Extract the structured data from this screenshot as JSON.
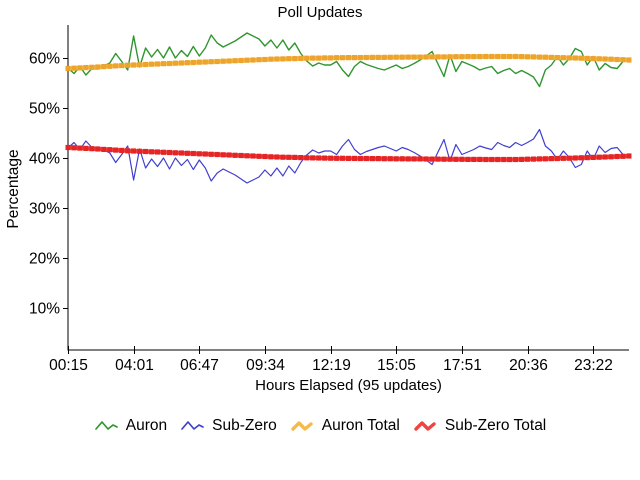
{
  "chart_data": {
    "type": "line",
    "title": "Poll Updates",
    "xlabel": "Hours Elapsed (95 updates)",
    "ylabel": "Percentage",
    "x_tick_labels": [
      "00:15",
      "04:01",
      "06:47",
      "09:34",
      "12:19",
      "15:05",
      "17:51",
      "20:36",
      "23:22"
    ],
    "x_points": 95,
    "x_ticks_every_points": 11,
    "y_ticks": [
      10,
      20,
      30,
      40,
      50,
      60
    ],
    "y_tick_labels": [
      "10%",
      "20%",
      "30%",
      "40%",
      "50%",
      "60%"
    ],
    "ylim": [
      1.6,
      66.6
    ],
    "grid": false,
    "legend_position": "bottom",
    "background": "#ffffff",
    "axis_color": "#000000",
    "series": [
      {
        "name": "Auron",
        "color": "#2f962f",
        "line_width": 1.4,
        "values": [
          58.0,
          56.9,
          58.3,
          56.6,
          57.9,
          57.8,
          58.4,
          59.0,
          60.9,
          59.3,
          57.6,
          64.4,
          58.2,
          62.0,
          60.2,
          61.7,
          60.0,
          62.2,
          60.0,
          61.5,
          60.3,
          62.3,
          60.4,
          62.0,
          64.6,
          63.0,
          62.2,
          62.8,
          63.4,
          64.2,
          65.0,
          64.4,
          63.8,
          62.4,
          63.6,
          62.0,
          63.6,
          61.6,
          63.0,
          60.9,
          59.4,
          58.4,
          59.0,
          58.6,
          58.6,
          59.3,
          57.6,
          56.3,
          58.3,
          59.3,
          58.7,
          58.3,
          57.9,
          57.6,
          58.1,
          58.6,
          57.9,
          58.3,
          58.9,
          59.6,
          60.4,
          61.3,
          58.8,
          56.3,
          60.6,
          57.3,
          59.3,
          58.8,
          58.3,
          57.6,
          58.0,
          58.3,
          56.9,
          57.5,
          57.9,
          56.9,
          57.5,
          56.9,
          56.2,
          54.3,
          57.6,
          58.6,
          60.3,
          58.6,
          59.9,
          61.9,
          61.3,
          58.6,
          60.3,
          57.6,
          58.9,
          58.1,
          57.9,
          59.3,
          59.6
        ]
      },
      {
        "name": "Sub-Zero",
        "color": "#4040d0",
        "line_width": 1.2,
        "values": [
          42.0,
          43.1,
          41.7,
          43.4,
          42.1,
          42.2,
          41.6,
          41.0,
          39.1,
          40.7,
          42.4,
          35.6,
          41.8,
          38.0,
          39.8,
          38.3,
          40.0,
          37.8,
          40.0,
          38.5,
          39.7,
          37.7,
          39.6,
          38.0,
          35.4,
          37.0,
          37.8,
          37.2,
          36.6,
          35.8,
          35.0,
          35.6,
          36.2,
          37.6,
          36.4,
          38.0,
          36.4,
          38.4,
          37.0,
          39.1,
          40.6,
          41.6,
          41.0,
          41.4,
          41.4,
          40.7,
          42.4,
          43.7,
          41.7,
          40.7,
          41.3,
          41.7,
          42.1,
          42.4,
          41.9,
          41.4,
          42.1,
          41.7,
          41.1,
          40.4,
          39.6,
          38.7,
          41.2,
          43.7,
          39.4,
          42.7,
          40.7,
          41.2,
          41.7,
          42.4,
          42.0,
          41.7,
          43.1,
          42.5,
          42.1,
          43.1,
          42.5,
          43.1,
          43.8,
          45.7,
          42.4,
          41.4,
          39.7,
          41.4,
          40.1,
          38.1,
          38.7,
          41.4,
          39.7,
          42.4,
          41.1,
          41.9,
          42.1,
          40.7,
          40.4
        ]
      },
      {
        "name": "Auron Total",
        "color": "#f5bb4a",
        "marker_color": "#eda42c",
        "line_width": 4.2,
        "values": [
          57.9,
          57.96,
          58.02,
          58.08,
          58.14,
          58.2,
          58.27,
          58.34,
          58.41,
          58.48,
          58.55,
          58.6,
          58.65,
          58.7,
          58.75,
          58.8,
          58.85,
          58.9,
          58.95,
          59.0,
          59.05,
          59.1,
          59.15,
          59.2,
          59.25,
          59.3,
          59.35,
          59.4,
          59.45,
          59.5,
          59.55,
          59.6,
          59.65,
          59.7,
          59.75,
          59.8,
          59.83,
          59.86,
          59.89,
          59.92,
          59.95,
          59.97,
          59.99,
          60.01,
          60.03,
          60.05,
          60.06,
          60.07,
          60.08,
          60.09,
          60.1,
          60.11,
          60.12,
          60.13,
          60.14,
          60.15,
          60.16,
          60.17,
          60.18,
          60.19,
          60.2,
          60.21,
          60.22,
          60.23,
          60.24,
          60.25,
          60.26,
          60.27,
          60.28,
          60.29,
          60.3,
          60.3,
          60.3,
          60.3,
          60.3,
          60.3,
          60.27,
          60.24,
          60.21,
          60.18,
          60.15,
          60.12,
          60.09,
          60.06,
          60.03,
          60.0,
          59.96,
          59.92,
          59.88,
          59.84,
          59.8,
          59.75,
          59.7,
          59.65,
          59.6
        ]
      },
      {
        "name": "Sub-Zero Total",
        "color": "#f04343",
        "marker_color": "#e52525",
        "line_width": 4.2,
        "values": [
          42.1,
          42.04,
          41.98,
          41.92,
          41.86,
          41.8,
          41.73,
          41.66,
          41.59,
          41.52,
          41.45,
          41.4,
          41.35,
          41.3,
          41.25,
          41.2,
          41.15,
          41.1,
          41.05,
          41.0,
          40.95,
          40.9,
          40.85,
          40.8,
          40.75,
          40.7,
          40.65,
          40.6,
          40.55,
          40.5,
          40.45,
          40.4,
          40.35,
          40.3,
          40.25,
          40.2,
          40.17,
          40.14,
          40.11,
          40.08,
          40.05,
          40.03,
          40.01,
          39.99,
          39.97,
          39.95,
          39.94,
          39.93,
          39.92,
          39.91,
          39.9,
          39.89,
          39.88,
          39.87,
          39.86,
          39.85,
          39.84,
          39.83,
          39.82,
          39.81,
          39.8,
          39.79,
          39.78,
          39.77,
          39.76,
          39.75,
          39.74,
          39.73,
          39.72,
          39.71,
          39.7,
          39.7,
          39.7,
          39.7,
          39.7,
          39.7,
          39.73,
          39.76,
          39.79,
          39.82,
          39.85,
          39.88,
          39.91,
          39.94,
          39.97,
          40.0,
          40.04,
          40.08,
          40.12,
          40.16,
          40.2,
          40.25,
          40.3,
          40.35,
          40.4
        ]
      }
    ]
  }
}
